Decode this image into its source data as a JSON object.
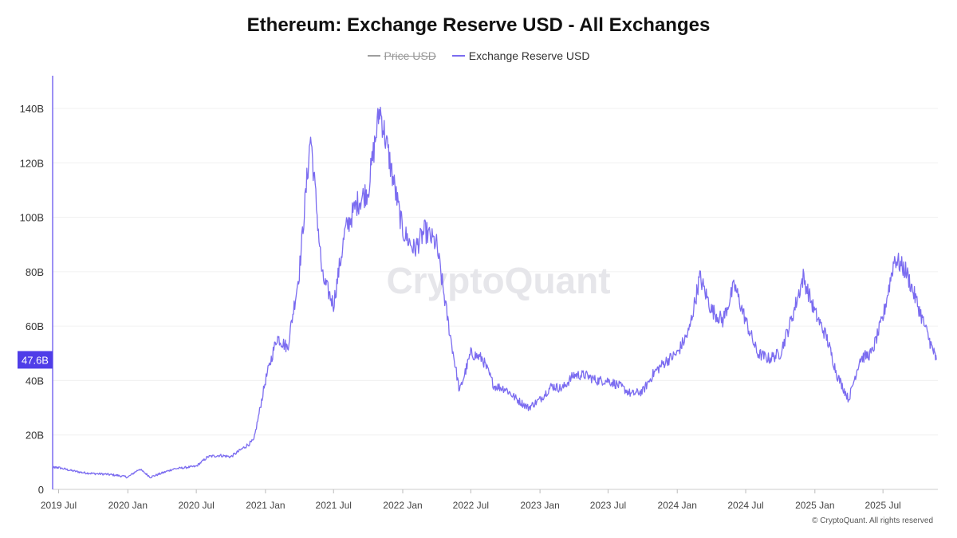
{
  "chart_data": {
    "type": "line",
    "title": "Ethereum: Exchange Reserve USD - All Exchanges",
    "xlabel": "",
    "ylabel": "",
    "ylim": [
      0,
      152
    ],
    "y_unit": "B",
    "y_ticks": [
      "0",
      "20B",
      "40B",
      "60B",
      "80B",
      "100B",
      "120B",
      "140B"
    ],
    "x_ticks": [
      "2019 Jul",
      "2020 Jan",
      "2020 Jul",
      "2021 Jan",
      "2021 Jul",
      "2022 Jan",
      "2022 Jul",
      "2023 Jan",
      "2023 Jul",
      "2024 Jan",
      "2024 Jul",
      "2025 Jan",
      "2025 Jul"
    ],
    "grid": true,
    "legend_position": "top-center",
    "current_value_label": "47.6B",
    "series": [
      {
        "name": "Price USD",
        "color": "#9e9e9e",
        "hidden": true,
        "values": []
      },
      {
        "name": "Exchange Reserve USD",
        "color": "#7b6cf0",
        "hidden": false,
        "points": [
          [
            "2019-06-15",
            8
          ],
          [
            "2019-07-01",
            8
          ],
          [
            "2019-08-01",
            7
          ],
          [
            "2019-09-01",
            6.2
          ],
          [
            "2019-10-01",
            5.8
          ],
          [
            "2019-11-01",
            5.6
          ],
          [
            "2019-12-01",
            5.2
          ],
          [
            "2020-01-01",
            4.5
          ],
          [
            "2020-02-01",
            7.5
          ],
          [
            "2020-03-01",
            4.5
          ],
          [
            "2020-04-01",
            6
          ],
          [
            "2020-05-01",
            7.5
          ],
          [
            "2020-06-01",
            8
          ],
          [
            "2020-07-01",
            8.5
          ],
          [
            "2020-08-01",
            12
          ],
          [
            "2020-09-01",
            12.5
          ],
          [
            "2020-10-01",
            12
          ],
          [
            "2020-11-01",
            15
          ],
          [
            "2020-12-01",
            18
          ],
          [
            "2021-01-01",
            40
          ],
          [
            "2021-02-01",
            56
          ],
          [
            "2021-03-01",
            52
          ],
          [
            "2021-04-01",
            80
          ],
          [
            "2021-05-01",
            130
          ],
          [
            "2021-06-01",
            78
          ],
          [
            "2021-07-01",
            68
          ],
          [
            "2021-08-01",
            95
          ],
          [
            "2021-09-01",
            105
          ],
          [
            "2021-10-01",
            110
          ],
          [
            "2021-11-01",
            140
          ],
          [
            "2021-12-01",
            118
          ],
          [
            "2022-01-01",
            95
          ],
          [
            "2022-02-01",
            88
          ],
          [
            "2022-03-01",
            95
          ],
          [
            "2022-04-01",
            90
          ],
          [
            "2022-05-01",
            62
          ],
          [
            "2022-06-01",
            36
          ],
          [
            "2022-07-01",
            50
          ],
          [
            "2022-08-01",
            48
          ],
          [
            "2022-09-01",
            38
          ],
          [
            "2022-10-01",
            37
          ],
          [
            "2022-11-01",
            33
          ],
          [
            "2022-12-01",
            30
          ],
          [
            "2023-01-01",
            33
          ],
          [
            "2023-02-01",
            38
          ],
          [
            "2023-03-01",
            37
          ],
          [
            "2023-04-01",
            42
          ],
          [
            "2023-05-01",
            42
          ],
          [
            "2023-06-01",
            40
          ],
          [
            "2023-07-01",
            40
          ],
          [
            "2023-08-01",
            38
          ],
          [
            "2023-09-01",
            35
          ],
          [
            "2023-10-01",
            36
          ],
          [
            "2023-11-01",
            43
          ],
          [
            "2023-12-01",
            47
          ],
          [
            "2024-01-01",
            50
          ],
          [
            "2024-02-01",
            58
          ],
          [
            "2024-03-01",
            78
          ],
          [
            "2024-04-01",
            66
          ],
          [
            "2024-05-01",
            62
          ],
          [
            "2024-06-01",
            75
          ],
          [
            "2024-07-01",
            62
          ],
          [
            "2024-08-01",
            50
          ],
          [
            "2024-09-01",
            48
          ],
          [
            "2024-10-01",
            50
          ],
          [
            "2024-11-01",
            63
          ],
          [
            "2024-12-01",
            78
          ],
          [
            "2025-01-01",
            65
          ],
          [
            "2025-02-01",
            56
          ],
          [
            "2025-03-01",
            42
          ],
          [
            "2025-04-01",
            33
          ],
          [
            "2025-05-01",
            48
          ],
          [
            "2025-06-01",
            50
          ],
          [
            "2025-07-01",
            63
          ],
          [
            "2025-08-01",
            85
          ],
          [
            "2025-09-01",
            80
          ],
          [
            "2025-10-01",
            68
          ],
          [
            "2025-11-01",
            55
          ],
          [
            "2025-11-20",
            47.6
          ]
        ]
      }
    ]
  },
  "watermark": "CryptoQuant",
  "credit": "© CryptoQuant. All rights reserved"
}
